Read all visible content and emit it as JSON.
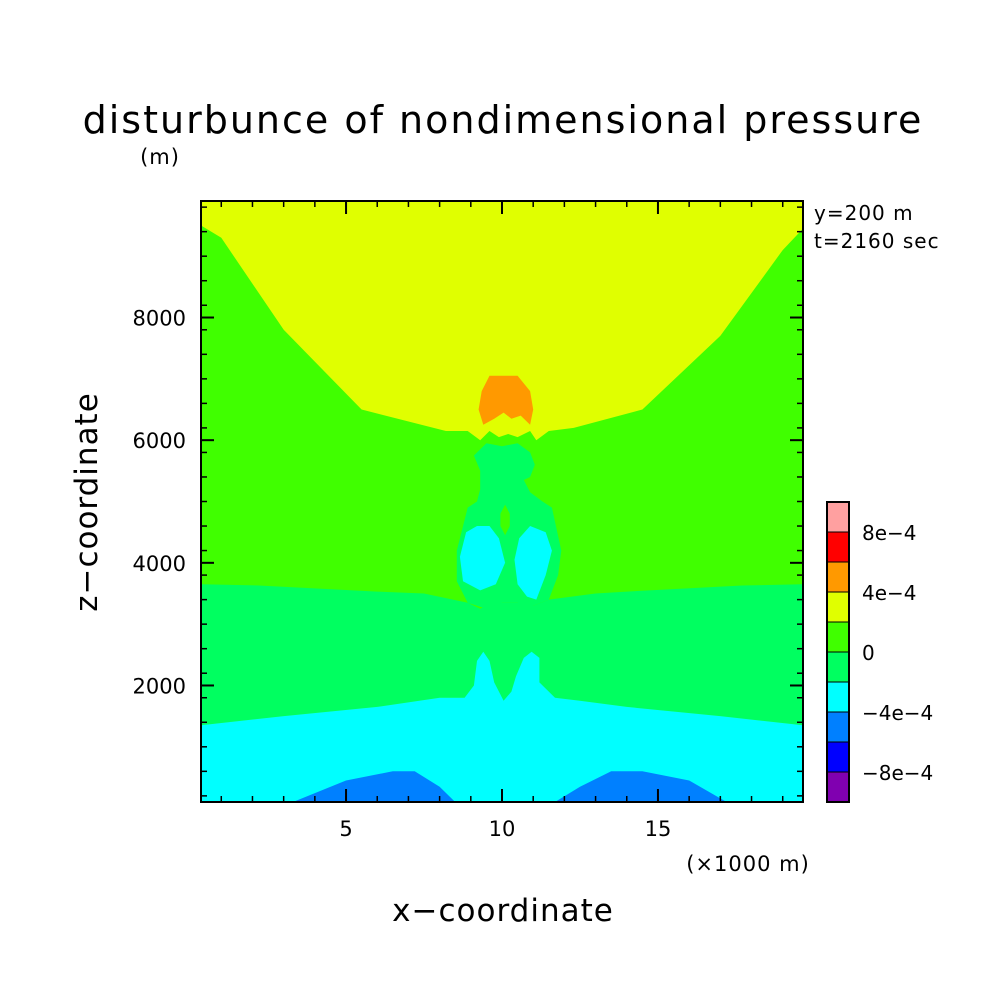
{
  "chart_data": {
    "type": "heatmap",
    "title": "disturbunce of nondimensional pressure",
    "z_unit": "(m)",
    "xlabel": "x−coordinate",
    "ylabel": "z−coordinate",
    "x_unit": "(×1000 m)",
    "annotations": [
      "y=200 m",
      "t=2160 sec"
    ],
    "x_ticks": [
      {
        "value": 5,
        "label": "5"
      },
      {
        "value": 10,
        "label": "10"
      },
      {
        "value": 15,
        "label": "15"
      }
    ],
    "y_ticks": [
      {
        "value": 2000,
        "label": "2000"
      },
      {
        "value": 4000,
        "label": "4000"
      },
      {
        "value": 6000,
        "label": "6000"
      },
      {
        "value": 8000,
        "label": "8000"
      }
    ],
    "xlim": [
      0.35,
      19.65
    ],
    "ylim": [
      100,
      9900
    ],
    "colorbar": {
      "levels": [
        -0.001,
        -0.0008,
        -0.0006,
        -0.0004,
        -0.0002,
        0,
        0.0002,
        0.0004,
        0.0006,
        0.0008,
        0.001
      ],
      "colors": [
        "#8000b0",
        "#0000ff",
        "#0080ff",
        "#00ffff",
        "#00ff60",
        "#40ff00",
        "#e0ff00",
        "#ff9900",
        "#ff0000",
        "#ffa0a0"
      ],
      "tick_labels": [
        {
          "value": 0.0008,
          "label": "8e−4"
        },
        {
          "value": 0.0004,
          "label": "4e−4"
        },
        {
          "value": 0,
          "label": "0"
        },
        {
          "value": -0.0004,
          "label": "−4e−4"
        },
        {
          "value": -0.0008,
          "label": "−8e−4"
        }
      ]
    },
    "regions": [
      {
        "name": "upper-positive-band",
        "level": 6,
        "points": [
          [
            0.35,
            9900
          ],
          [
            19.65,
            9900
          ],
          [
            19.65,
            9450
          ],
          [
            19,
            9100
          ],
          [
            17,
            7700
          ],
          [
            14.5,
            6500
          ],
          [
            12.3,
            6200
          ],
          [
            11.5,
            6150
          ],
          [
            11.1,
            6000
          ],
          [
            10.9,
            6150
          ],
          [
            10.5,
            6050
          ],
          [
            10.2,
            6100
          ],
          [
            9.9,
            6050
          ],
          [
            9.6,
            6150
          ],
          [
            9.3,
            6000
          ],
          [
            8.9,
            6150
          ],
          [
            8.2,
            6150
          ],
          [
            5.5,
            6500
          ],
          [
            3,
            7800
          ],
          [
            1,
            9300
          ],
          [
            0.35,
            9500
          ]
        ]
      },
      {
        "name": "positive-maximum",
        "level": 7,
        "points": [
          [
            9.6,
            7050
          ],
          [
            10.5,
            7050
          ],
          [
            10.9,
            6800
          ],
          [
            11,
            6500
          ],
          [
            10.9,
            6250
          ],
          [
            10.6,
            6400
          ],
          [
            10.3,
            6350
          ],
          [
            10.05,
            6450
          ],
          [
            9.75,
            6350
          ],
          [
            9.4,
            6250
          ],
          [
            9.25,
            6500
          ],
          [
            9.35,
            6800
          ]
        ]
      },
      {
        "name": "mid-negative-band",
        "level": 4,
        "points": [
          [
            0.35,
            3650
          ],
          [
            2.2,
            3630
          ],
          [
            6,
            3530
          ],
          [
            7.5,
            3500
          ],
          [
            8.9,
            3350
          ],
          [
            9.3,
            3250
          ],
          [
            9.5,
            3300
          ],
          [
            10,
            3350
          ],
          [
            10.5,
            3350
          ],
          [
            10.7,
            3400
          ],
          [
            11,
            3300
          ],
          [
            11.5,
            3400
          ],
          [
            13,
            3500
          ],
          [
            14,
            3530
          ],
          [
            17.7,
            3630
          ],
          [
            19.65,
            3650
          ],
          [
            19.65,
            1350
          ],
          [
            17,
            1500
          ],
          [
            14,
            1650
          ],
          [
            12.5,
            1750
          ],
          [
            11.7,
            1800
          ],
          [
            11.2,
            1750
          ],
          [
            10.8,
            1650
          ],
          [
            10.5,
            1700
          ],
          [
            10.1,
            1700
          ],
          [
            9.8,
            1650
          ],
          [
            9.2,
            1600
          ],
          [
            8.8,
            1800
          ],
          [
            8,
            1800
          ],
          [
            6,
            1650
          ],
          [
            3,
            1500
          ],
          [
            0.35,
            1350
          ]
        ]
      },
      {
        "name": "central-disturbance-column",
        "level": 4,
        "points": [
          [
            9.1,
            5750
          ],
          [
            9.5,
            5950
          ],
          [
            10,
            5900
          ],
          [
            10.5,
            5950
          ],
          [
            10.9,
            5800
          ],
          [
            11.05,
            5600
          ],
          [
            10.9,
            5400
          ],
          [
            10.7,
            5350
          ],
          [
            10.9,
            5150
          ],
          [
            11.3,
            5000
          ],
          [
            11.6,
            4900
          ],
          [
            11.9,
            4200
          ],
          [
            11.8,
            3800
          ],
          [
            11.5,
            3400
          ],
          [
            11,
            3300
          ],
          [
            10.5,
            3350
          ],
          [
            10,
            3350
          ],
          [
            9.5,
            3250
          ],
          [
            8.9,
            3350
          ],
          [
            8.55,
            3700
          ],
          [
            8.55,
            4200
          ],
          [
            8.9,
            4900
          ],
          [
            9.2,
            5000
          ],
          [
            9.3,
            5200
          ],
          [
            9.3,
            5500
          ]
        ]
      },
      {
        "name": "lower-central-neck",
        "level": 4,
        "points": [
          [
            9.1,
            2100
          ],
          [
            9.2,
            2450
          ],
          [
            9.4,
            2550
          ],
          [
            9.6,
            2400
          ],
          [
            9.7,
            2100
          ],
          [
            9.9,
            1950
          ],
          [
            10.1,
            2000
          ],
          [
            10.3,
            1950
          ],
          [
            10.5,
            2100
          ],
          [
            10.7,
            2400
          ],
          [
            10.9,
            2550
          ],
          [
            11.2,
            2450
          ],
          [
            11.3,
            2100
          ],
          [
            11.5,
            1800
          ],
          [
            10.8,
            1650
          ],
          [
            10.1,
            1700
          ],
          [
            9.5,
            1600
          ],
          [
            8.8,
            1800
          ],
          [
            9,
            1950
          ]
        ]
      },
      {
        "name": "lower-negative-band",
        "level": 3,
        "points": [
          [
            0.35,
            1350
          ],
          [
            3,
            1500
          ],
          [
            6,
            1650
          ],
          [
            8,
            1800
          ],
          [
            8.8,
            1800
          ],
          [
            9.1,
            2000
          ],
          [
            9.2,
            2400
          ],
          [
            9.4,
            2550
          ],
          [
            9.6,
            2400
          ],
          [
            9.75,
            2050
          ],
          [
            10.05,
            1750
          ],
          [
            10.3,
            1900
          ],
          [
            10.45,
            2150
          ],
          [
            10.7,
            2450
          ],
          [
            10.95,
            2550
          ],
          [
            11.2,
            2450
          ],
          [
            11.2,
            2050
          ],
          [
            11.7,
            1800
          ],
          [
            12.5,
            1750
          ],
          [
            14,
            1650
          ],
          [
            17,
            1500
          ],
          [
            19.65,
            1350
          ],
          [
            19.65,
            100
          ],
          [
            0.35,
            100
          ]
        ]
      },
      {
        "name": "right-cavity-upper",
        "level": 4,
        "points": [
          [
            10.7,
            5100
          ],
          [
            10.4,
            4900
          ],
          [
            10.2,
            4700
          ],
          [
            10.3,
            4500
          ],
          [
            10.6,
            4300
          ],
          [
            11,
            4100
          ],
          [
            11.4,
            4150
          ],
          [
            11.7,
            4400
          ],
          [
            11.5,
            4700
          ],
          [
            11.2,
            4950
          ]
        ]
      },
      {
        "name": "left-negative-cell",
        "level": 3,
        "points": [
          [
            9.2,
            4600
          ],
          [
            8.85,
            4500
          ],
          [
            8.65,
            4100
          ],
          [
            8.75,
            3700
          ],
          [
            9.3,
            3550
          ],
          [
            9.8,
            3650
          ],
          [
            10.1,
            4000
          ],
          [
            9.9,
            4400
          ],
          [
            9.6,
            4600
          ]
        ]
      },
      {
        "name": "right-negative-cell",
        "level": 3,
        "points": [
          [
            10.9,
            4600
          ],
          [
            10.55,
            4400
          ],
          [
            10.4,
            4050
          ],
          [
            10.5,
            3650
          ],
          [
            10.8,
            3450
          ],
          [
            11.1,
            3400
          ],
          [
            11.4,
            3800
          ],
          [
            11.6,
            4200
          ],
          [
            11.4,
            4500
          ]
        ]
      },
      {
        "name": "central-positive-dot",
        "level": 5,
        "points": [
          [
            10.1,
            4950
          ],
          [
            10.25,
            4800
          ],
          [
            10.25,
            4600
          ],
          [
            10.1,
            4450
          ],
          [
            9.95,
            4600
          ],
          [
            9.95,
            4800
          ]
        ]
      },
      {
        "name": "left-surface-minimum",
        "level": 2,
        "points": [
          [
            3.3,
            100
          ],
          [
            5,
            450
          ],
          [
            6.5,
            600
          ],
          [
            7.2,
            600
          ],
          [
            8,
            350
          ],
          [
            8.5,
            100
          ]
        ]
      },
      {
        "name": "right-surface-minimum",
        "level": 2,
        "points": [
          [
            11.7,
            100
          ],
          [
            12.5,
            350
          ],
          [
            13.5,
            600
          ],
          [
            14.5,
            600
          ],
          [
            16,
            450
          ],
          [
            17.2,
            100
          ]
        ]
      }
    ]
  }
}
